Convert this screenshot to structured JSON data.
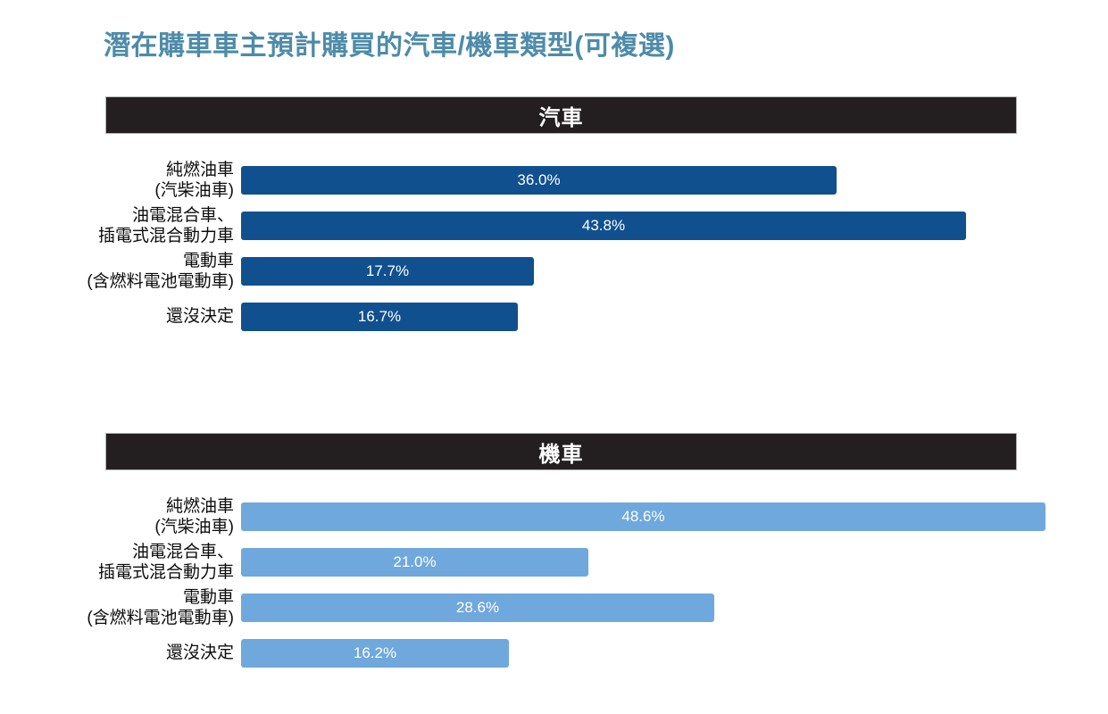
{
  "title": "潛在購車車主預計購買的汽車/機車類型(可複選)",
  "colors": {
    "title_text": "#4e8ba9",
    "header_bg": "#231f20",
    "header_text": "#ffffff",
    "car_bar": "#11508f",
    "motorcycle_bar": "#6fa8dc",
    "bar_value_text": "#ffffff",
    "category_text": "#0d0d0d"
  },
  "chart_data": [
    {
      "type": "bar",
      "orientation": "horizontal",
      "title": "汽車",
      "categories": [
        "純燃油車\n(汽柴油車)",
        "油電混合車、\n插電式混合動力車",
        "電動車\n(含燃料電池電動車)",
        "還沒決定"
      ],
      "values": [
        36.0,
        43.8,
        17.7,
        16.7
      ],
      "value_labels": [
        "36.0%",
        "43.8%",
        "17.7%",
        "16.7%"
      ],
      "bar_color": "#11508f",
      "value_label_position": "center-inside",
      "grid": false,
      "legend": false
    },
    {
      "type": "bar",
      "orientation": "horizontal",
      "title": "機車",
      "categories": [
        "純燃油車\n(汽柴油車)",
        "油電混合車、\n插電式混合動力車",
        "電動車\n(含燃料電池電動車)",
        "還沒決定"
      ],
      "values": [
        48.6,
        21.0,
        28.6,
        16.2
      ],
      "value_labels": [
        "48.6%",
        "21.0%",
        "28.6%",
        "16.2%"
      ],
      "bar_color": "#6fa8dc",
      "value_label_position": "center-inside",
      "grid": false,
      "legend": false
    }
  ]
}
